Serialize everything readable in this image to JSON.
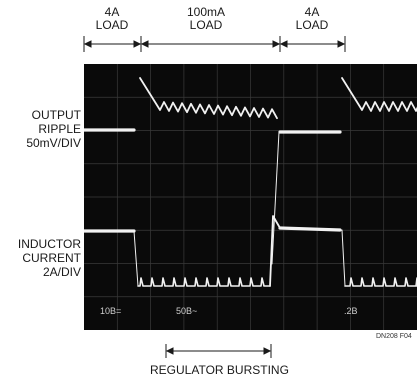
{
  "top_labels": [
    {
      "line1": "4A",
      "line2": "LOAD"
    },
    {
      "line1": "100mA",
      "line2": "LOAD"
    },
    {
      "line1": "4A",
      "line2": "LOAD"
    }
  ],
  "left_labels": {
    "ripple": [
      "OUTPUT",
      "RIPPLE",
      "50mV/DIV"
    ],
    "current": [
      "INDUCTOR",
      "CURRENT",
      "2A/DIV"
    ]
  },
  "screen_readouts": [
    "10B=",
    "50B~",
    ".2B"
  ],
  "figure_id": "DN208 F04",
  "bottom_label": "REGULATOR BURSTING",
  "colors": {
    "screen": "#0a0a0a",
    "trace": "#f2f2f2",
    "grid": "#3a3a3a",
    "ink": "#1a1a1a"
  }
}
